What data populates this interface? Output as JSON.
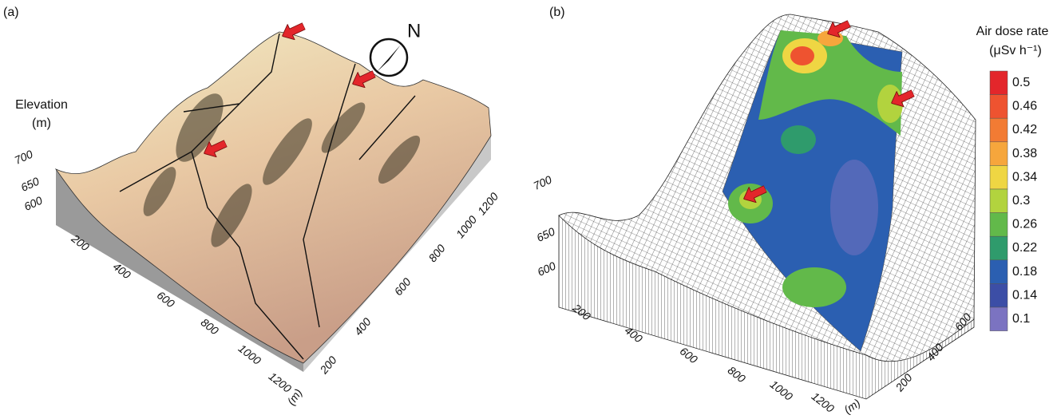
{
  "panels": [
    {
      "label": "(a)",
      "axis_title": "Elevation",
      "axis_unit": "(m)",
      "z_ticks": [
        "700",
        "650",
        "600"
      ],
      "x_ticks": [
        "200",
        "400",
        "600",
        "800",
        "1000",
        "1200"
      ],
      "x_unit": "(m)",
      "y_ticks": [
        "200",
        "400",
        "600",
        "800",
        "1000",
        "1200"
      ],
      "compass": "N"
    },
    {
      "label": "(b)",
      "z_ticks": [
        "700",
        "650",
        "600"
      ],
      "x_ticks": [
        "200",
        "400",
        "600",
        "800",
        "1000",
        "1200"
      ],
      "x_unit": "(m)",
      "y_ticks": [
        "200",
        "400",
        "600"
      ],
      "legend": {
        "title": "Air dose rate",
        "unit": "(μSv h⁻¹)",
        "levels": [
          0.5,
          0.46,
          0.42,
          0.38,
          0.34,
          0.3,
          0.26,
          0.22,
          0.18,
          0.14,
          0.1
        ],
        "colors": [
          "#e3262b",
          "#ee5330",
          "#f27b33",
          "#f6a63c",
          "#efd643",
          "#b2d33e",
          "#62b94a",
          "#2f9b6c",
          "#2b5fb1",
          "#3c4ea6",
          "#7b73c1"
        ]
      }
    }
  ]
}
